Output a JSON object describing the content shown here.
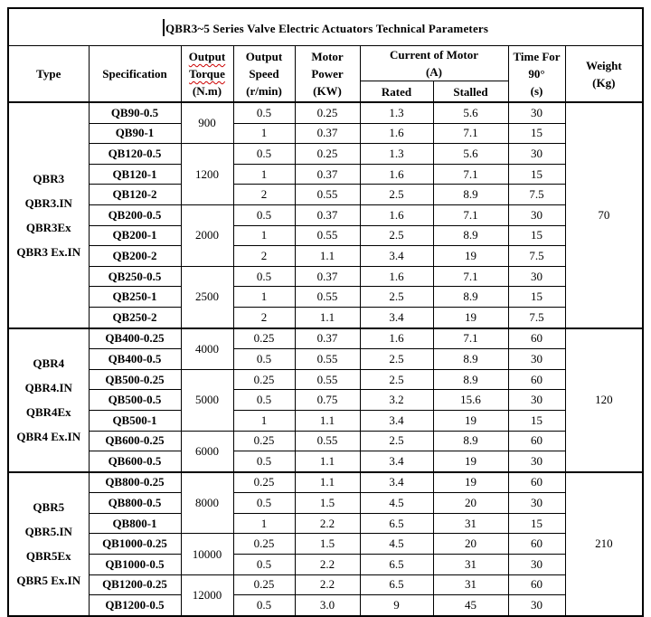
{
  "title": "QBR3~5 Series Valve Electric Actuators Technical Parameters",
  "columns": {
    "type": "Type",
    "specification": "Specification",
    "torque": [
      "Output",
      "Torque",
      "(N.m)"
    ],
    "speed": [
      "Output",
      "Speed",
      "(r/min)"
    ],
    "power": [
      "Motor",
      "Power",
      "(KW)"
    ],
    "current": [
      "Current of Motor",
      "(A)"
    ],
    "current_sub": [
      "Rated",
      "Stalled"
    ],
    "time": [
      "Time For",
      "90°",
      "(s)"
    ],
    "weight": [
      "Weight",
      "(Kg)"
    ]
  },
  "sections": [
    {
      "type_lines": [
        "QBR3",
        "QBR3.IN",
        "QBR3Ex",
        "QBR3 Ex.IN"
      ],
      "weight": "70",
      "groups": [
        {
          "torque": "900",
          "rows": [
            {
              "spec": "QB90-0.5",
              "speed": "0.5",
              "power": "0.25",
              "rated": "1.3",
              "stalled": "5.6",
              "time": "30"
            },
            {
              "spec": "QB90-1",
              "speed": "1",
              "power": "0.37",
              "rated": "1.6",
              "stalled": "7.1",
              "time": "15"
            }
          ]
        },
        {
          "torque": "1200",
          "rows": [
            {
              "spec": "QB120-0.5",
              "speed": "0.5",
              "power": "0.25",
              "rated": "1.3",
              "stalled": "5.6",
              "time": "30"
            },
            {
              "spec": "QB120-1",
              "speed": "1",
              "power": "0.37",
              "rated": "1.6",
              "stalled": "7.1",
              "time": "15"
            },
            {
              "spec": "QB120-2",
              "speed": "2",
              "power": "0.55",
              "rated": "2.5",
              "stalled": "8.9",
              "time": "7.5"
            }
          ]
        },
        {
          "torque": "2000",
          "rows": [
            {
              "spec": "QB200-0.5",
              "speed": "0.5",
              "power": "0.37",
              "rated": "1.6",
              "stalled": "7.1",
              "time": "30"
            },
            {
              "spec": "QB200-1",
              "speed": "1",
              "power": "0.55",
              "rated": "2.5",
              "stalled": "8.9",
              "time": "15"
            },
            {
              "spec": "QB200-2",
              "speed": "2",
              "power": "1.1",
              "rated": "3.4",
              "stalled": "19",
              "time": "7.5"
            }
          ]
        },
        {
          "torque": "2500",
          "rows": [
            {
              "spec": "QB250-0.5",
              "speed": "0.5",
              "power": "0.37",
              "rated": "1.6",
              "stalled": "7.1",
              "time": "30"
            },
            {
              "spec": "QB250-1",
              "speed": "1",
              "power": "0.55",
              "rated": "2.5",
              "stalled": "8.9",
              "time": "15"
            },
            {
              "spec": "QB250-2",
              "speed": "2",
              "power": "1.1",
              "rated": "3.4",
              "stalled": "19",
              "time": "7.5"
            }
          ]
        }
      ]
    },
    {
      "type_lines": [
        "QBR4",
        "QBR4.IN",
        "QBR4Ex",
        "QBR4 Ex.IN"
      ],
      "weight": "120",
      "groups": [
        {
          "torque": "4000",
          "rows": [
            {
              "spec": "QB400-0.25",
              "speed": "0.25",
              "power": "0.37",
              "rated": "1.6",
              "stalled": "7.1",
              "time": "60"
            },
            {
              "spec": "QB400-0.5",
              "speed": "0.5",
              "power": "0.55",
              "rated": "2.5",
              "stalled": "8.9",
              "time": "30"
            }
          ]
        },
        {
          "torque": "5000",
          "rows": [
            {
              "spec": "QB500-0.25",
              "speed": "0.25",
              "power": "0.55",
              "rated": "2.5",
              "stalled": "8.9",
              "time": "60"
            },
            {
              "spec": "QB500-0.5",
              "speed": "0.5",
              "power": "0.75",
              "rated": "3.2",
              "stalled": "15.6",
              "time": "30"
            },
            {
              "spec": "QB500-1",
              "speed": "1",
              "power": "1.1",
              "rated": "3.4",
              "stalled": "19",
              "time": "15"
            }
          ]
        },
        {
          "torque": "6000",
          "rows": [
            {
              "spec": "QB600-0.25",
              "speed": "0.25",
              "power": "0.55",
              "rated": "2.5",
              "stalled": "8.9",
              "time": "60"
            },
            {
              "spec": "QB600-0.5",
              "speed": "0.5",
              "power": "1.1",
              "rated": "3.4",
              "stalled": "19",
              "time": "30"
            }
          ]
        }
      ]
    },
    {
      "type_lines": [
        "QBR5",
        "QBR5.IN",
        "QBR5Ex",
        "QBR5 Ex.IN"
      ],
      "weight": "210",
      "groups": [
        {
          "torque": "8000",
          "rows": [
            {
              "spec": "QB800-0.25",
              "speed": "0.25",
              "power": "1.1",
              "rated": "3.4",
              "stalled": "19",
              "time": "60"
            },
            {
              "spec": "QB800-0.5",
              "speed": "0.5",
              "power": "1.5",
              "rated": "4.5",
              "stalled": "20",
              "time": "30"
            },
            {
              "spec": "QB800-1",
              "speed": "1",
              "power": "2.2",
              "rated": "6.5",
              "stalled": "31",
              "time": "15"
            }
          ]
        },
        {
          "torque": "10000",
          "rows": [
            {
              "spec": "QB1000-0.25",
              "speed": "0.25",
              "power": "1.5",
              "rated": "4.5",
              "stalled": "20",
              "time": "60"
            },
            {
              "spec": "QB1000-0.5",
              "speed": "0.5",
              "power": "2.2",
              "rated": "6.5",
              "stalled": "31",
              "time": "30"
            }
          ]
        },
        {
          "torque": "12000",
          "rows": [
            {
              "spec": "QB1200-0.25",
              "speed": "0.25",
              "power": "2.2",
              "rated": "6.5",
              "stalled": "31",
              "time": "60"
            },
            {
              "spec": "QB1200-0.5",
              "speed": "0.5",
              "power": "3.0",
              "rated": "9",
              "stalled": "45",
              "time": "30"
            }
          ]
        }
      ]
    }
  ]
}
